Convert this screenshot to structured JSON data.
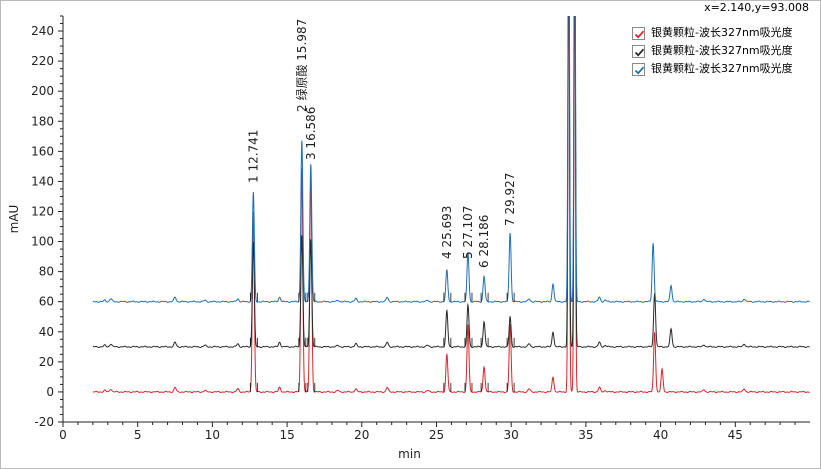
{
  "cursor_readout": "x=2.140,y=93.008",
  "legend": [
    {
      "label": "银黄颗粒-波长327nm吸光度",
      "color": "#d9252a",
      "checked": true,
      "check_icon": "checkmark-icon"
    },
    {
      "label": "银黄颗粒-波长327nm吸光度",
      "color": "#2a2a2a",
      "checked": true,
      "check_icon": "checkmark-icon"
    },
    {
      "label": "银黄颗粒-波长327nm吸光度",
      "color": "#1f6fb4",
      "checked": true,
      "check_icon": "checkmark-icon"
    }
  ],
  "chart_data": {
    "type": "line",
    "xlabel": "min",
    "ylabel": "mAU",
    "xlim": [
      0,
      50
    ],
    "ylim": [
      -20,
      250
    ],
    "xticks": [
      0,
      5,
      10,
      15,
      20,
      25,
      30,
      35,
      40,
      45
    ],
    "yticks": [
      -20,
      0,
      20,
      40,
      60,
      80,
      100,
      120,
      140,
      160,
      180,
      200,
      220,
      240
    ],
    "grid": false,
    "legend_position": "top-right",
    "peak_labels": [
      {
        "number": "1",
        "time_label": "12.741",
        "x": 12.741
      },
      {
        "number": "2",
        "name": "绿原酸",
        "time_label": "15.987",
        "x": 15.987
      },
      {
        "number": "3",
        "time_label": "16.586",
        "x": 16.586
      },
      {
        "number": "4",
        "time_label": "25.693",
        "x": 25.693
      },
      {
        "number": "5",
        "time_label": "27.107",
        "x": 27.107
      },
      {
        "number": "6",
        "time_label": "28.186",
        "x": 28.186
      },
      {
        "number": "7",
        "time_label": "29.927",
        "x": 29.927
      }
    ],
    "series": [
      {
        "name": "银黄颗粒-波长327nm吸光度",
        "color": "#d9252a",
        "baseline": 0,
        "peaks": [
          {
            "x": 12.741,
            "h": 120
          },
          {
            "x": 15.987,
            "h": 150
          },
          {
            "x": 16.586,
            "h": 145
          },
          {
            "x": 25.693,
            "h": 25
          },
          {
            "x": 27.107,
            "h": 45
          },
          {
            "x": 28.186,
            "h": 17
          },
          {
            "x": 29.927,
            "h": 45
          },
          {
            "x": 32.8,
            "h": 10
          },
          {
            "x": 33.85,
            "h": 300
          },
          {
            "x": 34.25,
            "h": 300
          },
          {
            "x": 39.6,
            "h": 40
          },
          {
            "x": 40.1,
            "h": 15
          },
          {
            "x": 42.9,
            "h": 1.5
          }
        ]
      },
      {
        "name": "银黄颗粒-波长327nm吸光度",
        "color": "#2a2a2a",
        "baseline": 30,
        "peaks": [
          {
            "x": 12.741,
            "h": 70
          },
          {
            "x": 15.987,
            "h": 75
          },
          {
            "x": 16.586,
            "h": 72
          },
          {
            "x": 25.693,
            "h": 24
          },
          {
            "x": 27.107,
            "h": 28
          },
          {
            "x": 28.186,
            "h": 17
          },
          {
            "x": 29.927,
            "h": 20
          },
          {
            "x": 32.8,
            "h": 10
          },
          {
            "x": 33.85,
            "h": 300
          },
          {
            "x": 34.25,
            "h": 300
          },
          {
            "x": 39.6,
            "h": 36
          },
          {
            "x": 40.7,
            "h": 12
          },
          {
            "x": 42.9,
            "h": 1.5
          }
        ]
      },
      {
        "name": "银黄颗粒-波长327nm吸光度",
        "color": "#1f6fb4",
        "baseline": 60,
        "peaks": [
          {
            "x": 12.741,
            "h": 73
          },
          {
            "x": 15.987,
            "h": 108
          },
          {
            "x": 16.586,
            "h": 92
          },
          {
            "x": 25.693,
            "h": 21
          },
          {
            "x": 27.107,
            "h": 33
          },
          {
            "x": 28.186,
            "h": 17
          },
          {
            "x": 29.927,
            "h": 46
          },
          {
            "x": 32.8,
            "h": 12
          },
          {
            "x": 33.85,
            "h": 300
          },
          {
            "x": 34.25,
            "h": 300
          },
          {
            "x": 39.5,
            "h": 39
          },
          {
            "x": 40.7,
            "h": 11
          },
          {
            "x": 42.9,
            "h": 2
          }
        ]
      }
    ]
  }
}
